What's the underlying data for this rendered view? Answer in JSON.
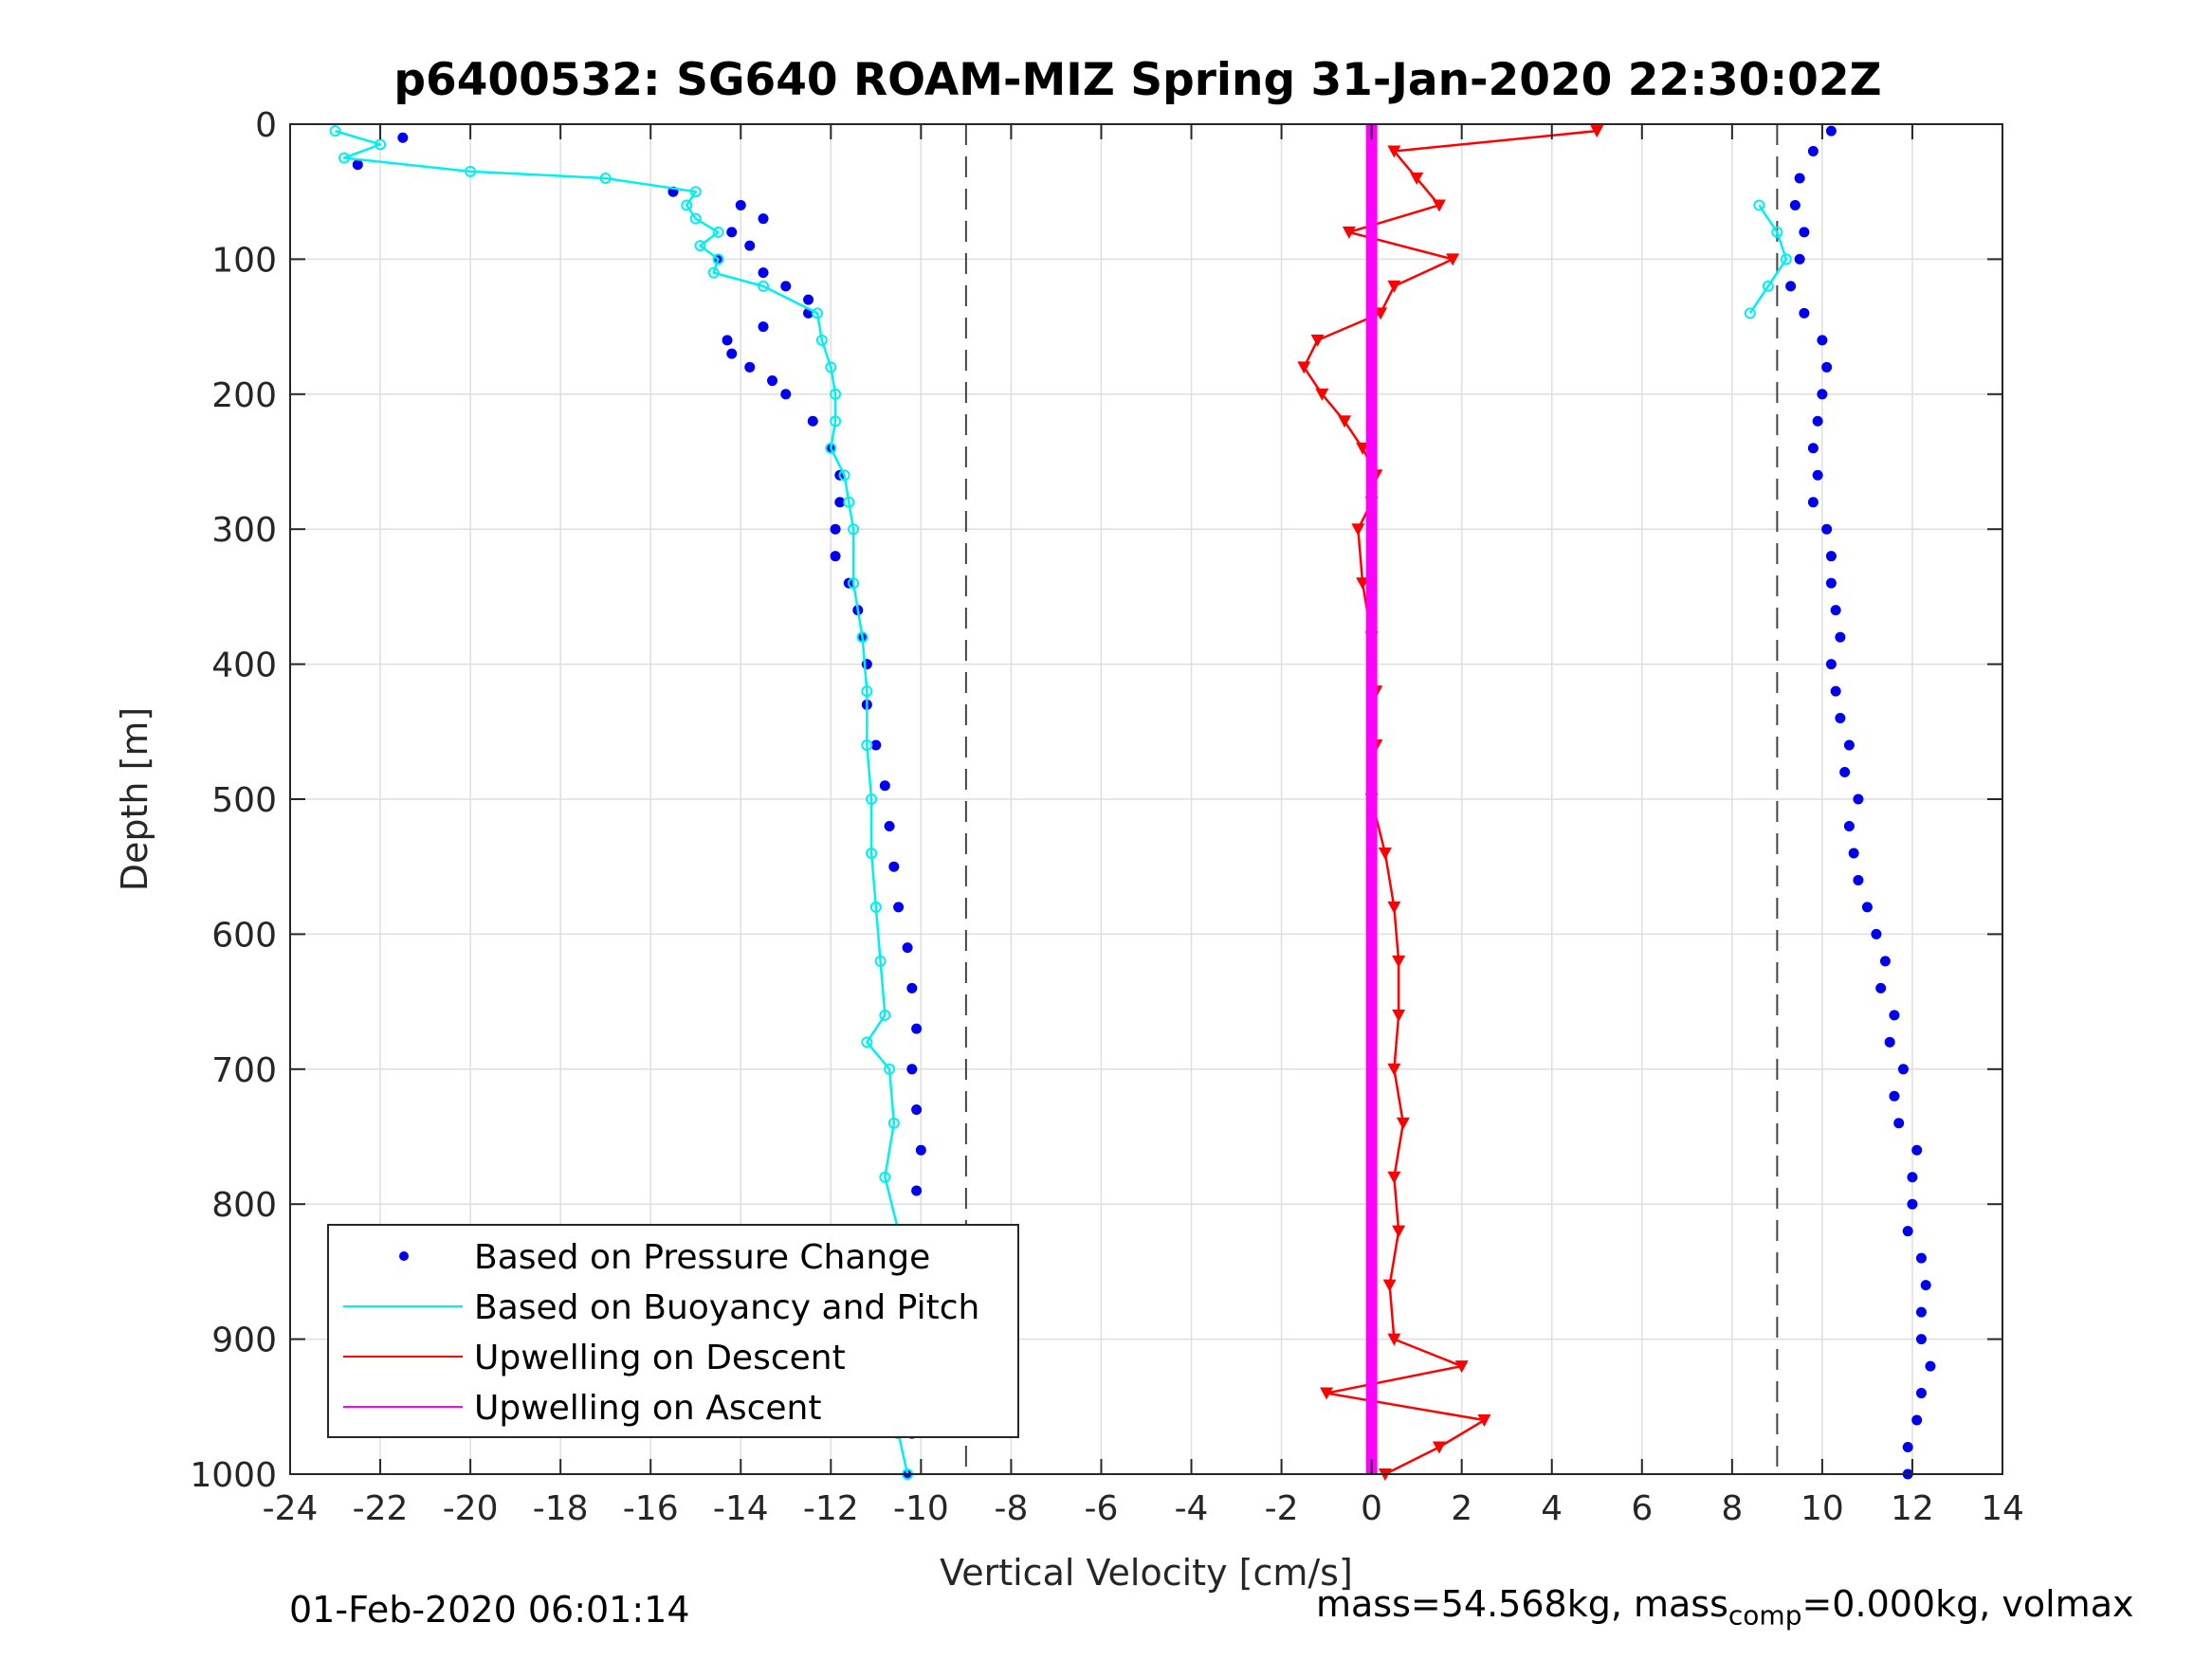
{
  "chart_data": {
    "type": "scatter",
    "title": "p6400532: SG640 ROAM-MIZ Spring 31-Jan-2020 22:30:02Z",
    "xlabel": "Vertical Velocity [cm/s]",
    "ylabel": "Depth [m]",
    "xlim": [
      -24,
      14
    ],
    "ylim": [
      0,
      1000
    ],
    "y_reversed": true,
    "grid": true,
    "x_ticks": [
      "-24",
      "-22",
      "-20",
      "-18",
      "-16",
      "-14",
      "-12",
      "-10",
      "-8",
      "-6",
      "-4",
      "-2",
      "0",
      "2",
      "4",
      "6",
      "8",
      "10",
      "12",
      "14"
    ],
    "y_ticks": [
      "0",
      "100",
      "200",
      "300",
      "400",
      "500",
      "600",
      "700",
      "800",
      "900",
      "1000"
    ],
    "reference_lines": {
      "x": [
        -9,
        9
      ],
      "style": "dashed"
    },
    "legend": {
      "position": "bottom-left",
      "entries": [
        "Based on Pressure Change",
        "Based on Buoyancy and Pitch",
        "Upwelling on Descent",
        "Upwelling on Ascent"
      ]
    },
    "colors": {
      "pressure": "#0000ee",
      "buoyancy": "#00f0f0",
      "upwell_descent": "#ff0000",
      "upwell_ascent": "#ff00ff"
    },
    "series": [
      {
        "key": "descent_pressure",
        "kind": "points",
        "depth": [
          10,
          30,
          50,
          60,
          70,
          80,
          90,
          100,
          110,
          120,
          130,
          140,
          150,
          160,
          170,
          180,
          190,
          200,
          220,
          240,
          260,
          280,
          300,
          320,
          340,
          360,
          380,
          400,
          430,
          460,
          490,
          520,
          550,
          580,
          610,
          640,
          670,
          700,
          730,
          760,
          790,
          820,
          850,
          880,
          910,
          940,
          970,
          1000
        ],
        "values": [
          -21.5,
          -22.5,
          -15.5,
          -14,
          -13.5,
          -14.2,
          -13.8,
          -14.5,
          -13.5,
          -13,
          -12.5,
          -12.5,
          -13.5,
          -14.3,
          -14.2,
          -13.8,
          -13.3,
          -13,
          -12.4,
          -12,
          -11.8,
          -11.8,
          -11.9,
          -11.9,
          -11.6,
          -11.4,
          -11.3,
          -11.2,
          -11.2,
          -11,
          -10.8,
          -10.7,
          -10.6,
          -10.5,
          -10.3,
          -10.2,
          -10.1,
          -10.2,
          -10.1,
          -10.0,
          -10.1,
          -10.0,
          -10.0,
          -10.2,
          -10.2,
          -10.3,
          -10.2,
          -10.3
        ]
      },
      {
        "key": "descent_buoyancy",
        "kind": "line",
        "depth": [
          5,
          15,
          25,
          35,
          40,
          50,
          60,
          70,
          80,
          90,
          100,
          110,
          120,
          140,
          160,
          180,
          200,
          220,
          240,
          260,
          280,
          300,
          340,
          380,
          420,
          460,
          500,
          540,
          580,
          620,
          660,
          680,
          700,
          740,
          780,
          820,
          860,
          900,
          940,
          970,
          1000
        ],
        "values": [
          -23,
          -22,
          -22.8,
          -20,
          -17,
          -15,
          -15.2,
          -15,
          -14.5,
          -14.9,
          -14.5,
          -14.6,
          -13.5,
          -12.3,
          -12.2,
          -12,
          -11.9,
          -11.9,
          -12,
          -11.7,
          -11.6,
          -11.5,
          -11.5,
          -11.3,
          -11.2,
          -11.2,
          -11.1,
          -11.1,
          -11,
          -10.9,
          -10.8,
          -11.2,
          -10.7,
          -10.6,
          -10.8,
          -10.5,
          -10.4,
          -10.6,
          -10.4,
          -10.5,
          -10.3
        ]
      },
      {
        "key": "ascent_pressure",
        "kind": "points",
        "depth": [
          5,
          20,
          40,
          60,
          80,
          100,
          120,
          140,
          160,
          180,
          200,
          220,
          240,
          260,
          280,
          300,
          320,
          340,
          360,
          380,
          400,
          420,
          440,
          460,
          480,
          500,
          520,
          540,
          560,
          580,
          600,
          620,
          640,
          660,
          680,
          700,
          720,
          740,
          760,
          780,
          800,
          820,
          840,
          860,
          880,
          900,
          920,
          940,
          960,
          980,
          1000
        ],
        "values": [
          10.2,
          9.8,
          9.5,
          9.4,
          9.6,
          9.5,
          9.3,
          9.6,
          10,
          10.1,
          10,
          9.9,
          9.8,
          9.9,
          9.8,
          10.1,
          10.2,
          10.2,
          10.3,
          10.4,
          10.2,
          10.3,
          10.4,
          10.6,
          10.5,
          10.8,
          10.6,
          10.7,
          10.8,
          11,
          11.2,
          11.4,
          11.3,
          11.6,
          11.5,
          11.8,
          11.6,
          11.7,
          12.1,
          12,
          12,
          11.9,
          12.2,
          12.3,
          12.2,
          12.2,
          12.4,
          12.2,
          12.1,
          11.9,
          11.9
        ]
      },
      {
        "key": "ascent_buoyancy",
        "kind": "line",
        "depth": [
          60,
          80,
          100,
          120,
          140
        ],
        "values": [
          8.6,
          9.0,
          9.2,
          8.8,
          8.4
        ]
      },
      {
        "key": "upwelling_descent",
        "kind": "line_markers",
        "depth": [
          5,
          20,
          40,
          60,
          80,
          100,
          120,
          140,
          160,
          180,
          200,
          220,
          240,
          260,
          280,
          300,
          340,
          380,
          420,
          460,
          500,
          540,
          580,
          620,
          660,
          700,
          740,
          780,
          820,
          860,
          900,
          920,
          940,
          960,
          980,
          1000
        ],
        "values": [
          5,
          0.5,
          1,
          1.5,
          -0.5,
          1.8,
          0.5,
          0.2,
          -1.2,
          -1.5,
          -1.1,
          -0.6,
          -0.2,
          0.1,
          0,
          -0.3,
          -0.2,
          0,
          0.1,
          0.1,
          0,
          0.3,
          0.5,
          0.6,
          0.6,
          0.5,
          0.7,
          0.5,
          0.6,
          0.4,
          0.5,
          2,
          -1,
          2.5,
          1.5,
          0.3
        ]
      },
      {
        "key": "upwelling_ascent",
        "kind": "line",
        "depth": [
          0,
          1000
        ],
        "values": [
          0,
          0
        ]
      }
    ]
  },
  "footer": {
    "date": "01-Feb-2020 06:01:14",
    "mass_main": "mass=54.568kg, mass",
    "mass_sub": "comp",
    "mass_tail": "=0.000kg, volmax"
  }
}
